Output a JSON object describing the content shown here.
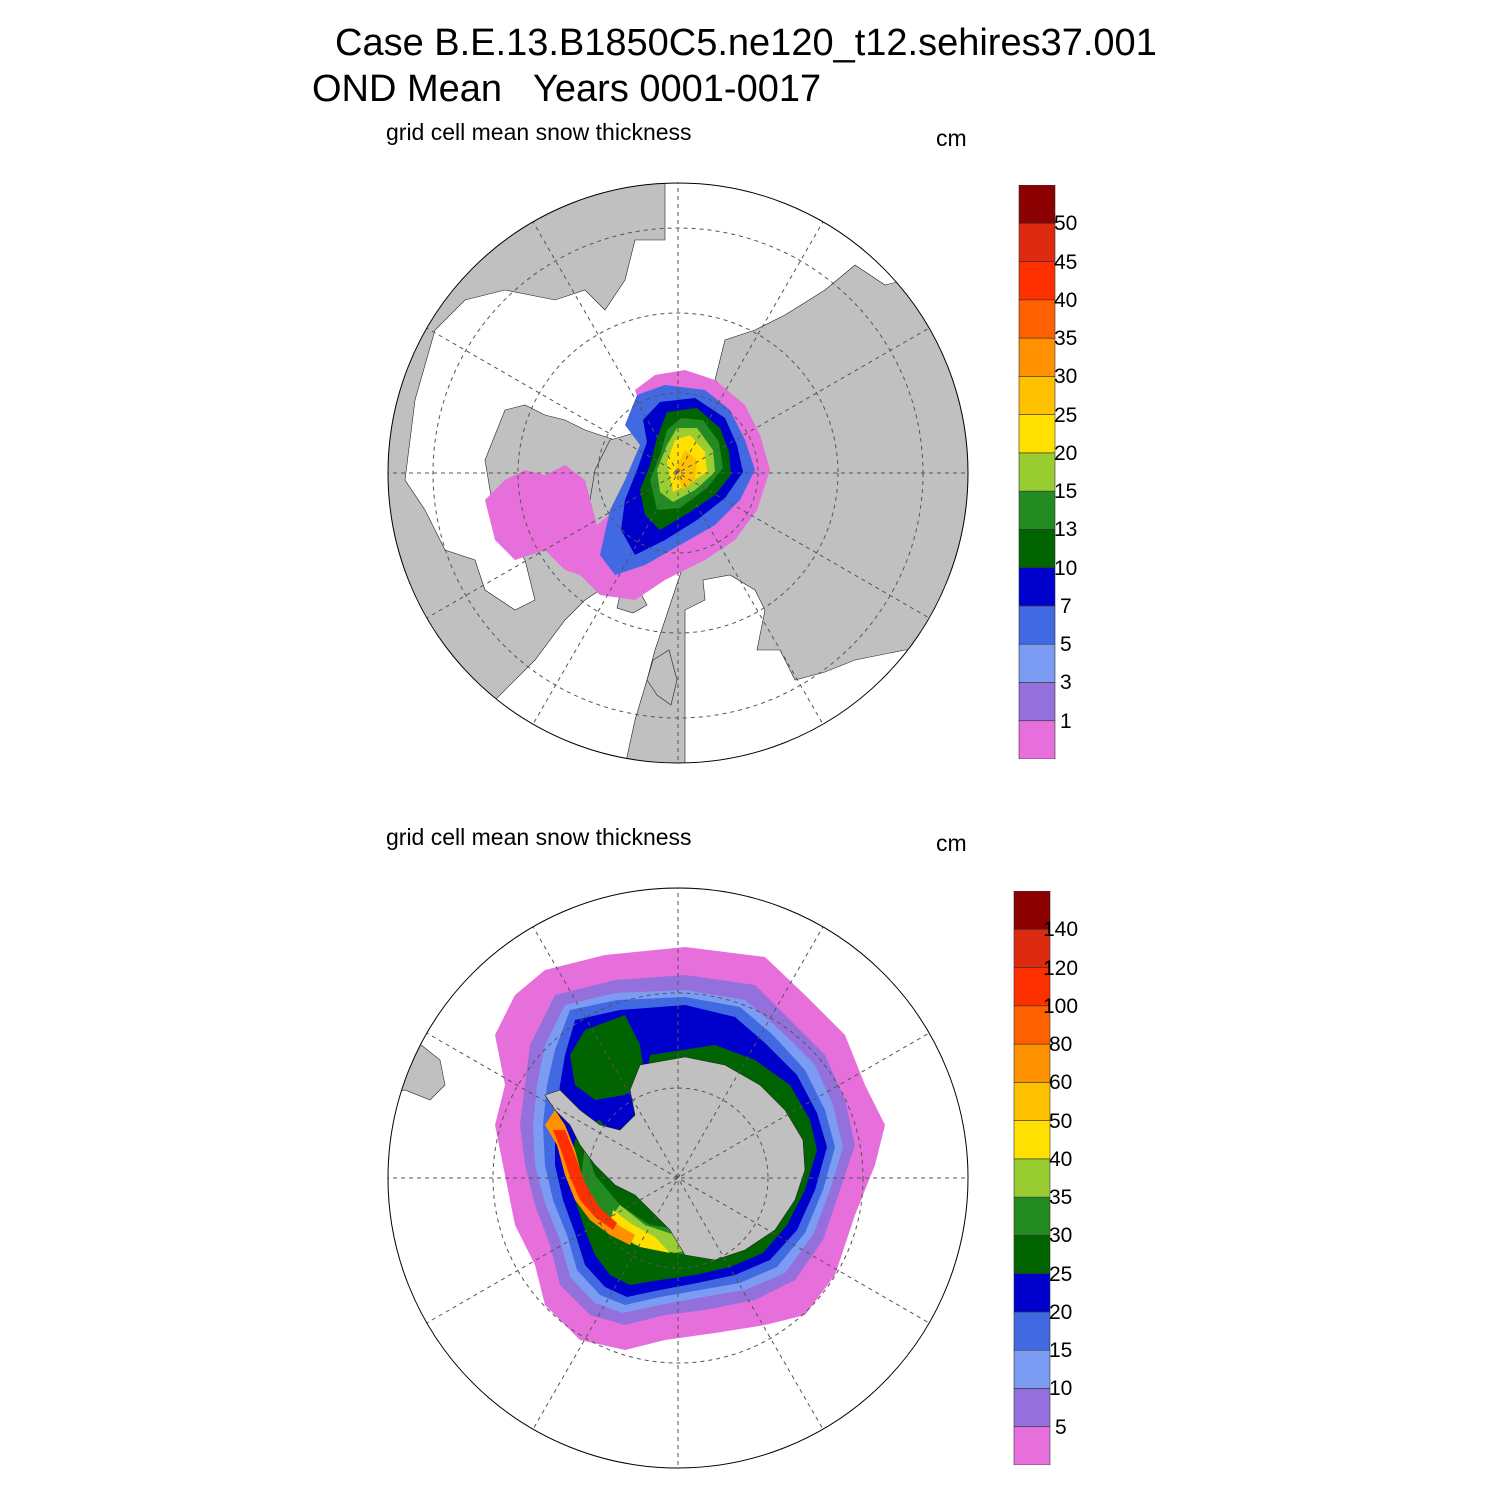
{
  "title_line1": "Case B.E.13.B1850C5.ne120_t12.sehires37.001",
  "title_line2": "OND Mean   Years 0001-0017",
  "colors": {
    "land": "#c0c0c0",
    "ocean": "#ffffff",
    "grid": "#555555",
    "scale": [
      "#e66fdc",
      "#9370db",
      "#7b9cf2",
      "#4169e1",
      "#0000cd",
      "#006400",
      "#228b22",
      "#9acd32",
      "#ffe000",
      "#ffc000",
      "#ff9000",
      "#ff6000",
      "#ff3000",
      "#dd2a10",
      "#8b0000"
    ]
  },
  "panels": [
    {
      "id": "north",
      "subtitle": "grid cell mean snow thickness",
      "units": "cm",
      "levels": [
        "1",
        "3",
        "5",
        "7",
        "10",
        "13",
        "15",
        "20",
        "25",
        "30",
        "35",
        "40",
        "45",
        "50"
      ]
    },
    {
      "id": "south",
      "subtitle": "grid cell mean snow thickness",
      "units": "cm",
      "levels": [
        "5",
        "10",
        "15",
        "20",
        "25",
        "30",
        "35",
        "40",
        "50",
        "60",
        "80",
        "100",
        "120",
        "140"
      ]
    }
  ]
}
